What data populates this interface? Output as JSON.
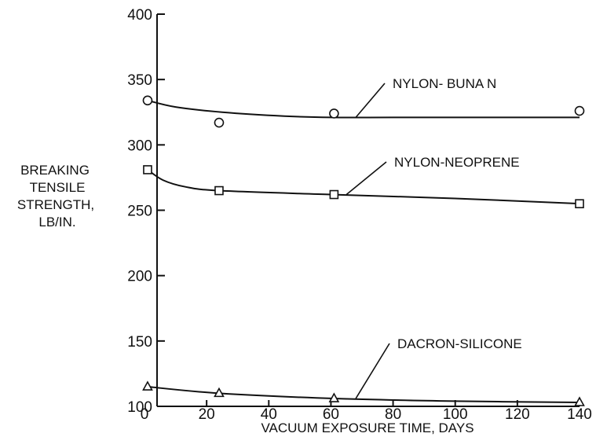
{
  "chart_data": {
    "type": "scatter",
    "title": "",
    "xlabel": "VACUUM EXPOSURE TIME, DAYS",
    "ylabel": [
      "BREAKING",
      "TENSILE",
      "STRENGTH,",
      "LB/IN."
    ],
    "xlim": [
      0,
      140
    ],
    "ylim": [
      100,
      400
    ],
    "xticks": [
      0,
      20,
      40,
      60,
      80,
      100,
      120,
      140
    ],
    "yticks": [
      100,
      150,
      200,
      250,
      300,
      350,
      400
    ],
    "grid": false,
    "legend": "none",
    "series": [
      {
        "name": "NYLON- BUNA N",
        "marker": "circle",
        "points": [
          [
            1,
            334
          ],
          [
            24,
            317
          ],
          [
            61,
            324
          ],
          [
            140,
            326
          ]
        ],
        "fit": [
          [
            1,
            334
          ],
          [
            10,
            329
          ],
          [
            25,
            325
          ],
          [
            45,
            322
          ],
          [
            60,
            321
          ],
          [
            80,
            321
          ],
          [
            110,
            321
          ],
          [
            140,
            321
          ]
        ]
      },
      {
        "name": "NYLON-NEOPRENE",
        "marker": "square",
        "points": [
          [
            1,
            281
          ],
          [
            24,
            265
          ],
          [
            61,
            262
          ],
          [
            140,
            255
          ]
        ],
        "fit": [
          [
            1,
            281
          ],
          [
            6,
            273
          ],
          [
            13,
            268
          ],
          [
            24,
            265
          ],
          [
            60,
            262
          ],
          [
            100,
            259
          ],
          [
            140,
            255
          ]
        ]
      },
      {
        "name": "DACRON-SILICONE",
        "marker": "triangle",
        "points": [
          [
            1,
            115
          ],
          [
            24,
            110
          ],
          [
            61,
            106
          ],
          [
            140,
            103
          ]
        ],
        "fit": [
          [
            1,
            115
          ],
          [
            24,
            110
          ],
          [
            61,
            106
          ],
          [
            100,
            104
          ],
          [
            140,
            103
          ]
        ]
      }
    ]
  }
}
